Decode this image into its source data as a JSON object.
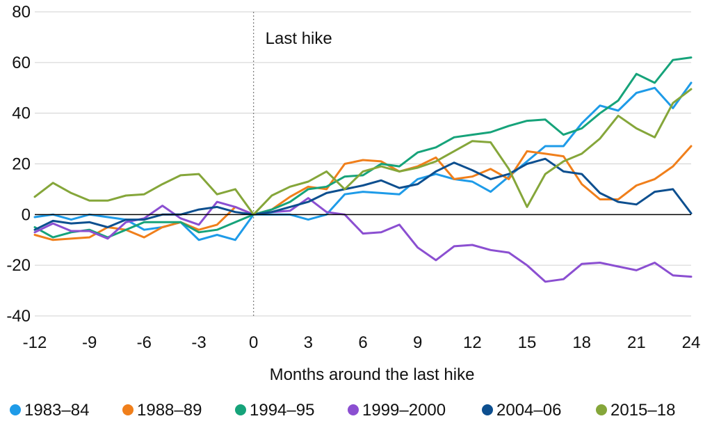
{
  "chart_data": {
    "type": "line",
    "xlabel": "Months around the last hike",
    "ylabel": "",
    "xlim": [
      -12,
      24
    ],
    "ylim": [
      -40,
      80
    ],
    "x_ticks": [
      -12,
      -9,
      -6,
      -3,
      0,
      3,
      6,
      9,
      12,
      15,
      18,
      21,
      24
    ],
    "y_ticks": [
      -40,
      -20,
      0,
      20,
      40,
      60,
      80
    ],
    "grid": true,
    "legend_position": "bottom",
    "annotation": {
      "text": "Last hike",
      "x": 0
    },
    "x": [
      -12,
      -11,
      -10,
      -9,
      -8,
      -7,
      -6,
      -5,
      -4,
      -3,
      -2,
      -1,
      0,
      1,
      2,
      3,
      4,
      5,
      6,
      7,
      8,
      9,
      10,
      11,
      12,
      13,
      14,
      15,
      16,
      17,
      18,
      19,
      20,
      21,
      22,
      23,
      24
    ],
    "series": [
      {
        "name": "1983–84",
        "color": "#1e9be8",
        "values": [
          -1,
          0,
          -2,
          0,
          -1,
          -2,
          -6,
          -5,
          -3,
          -10,
          -8,
          -10,
          0,
          0,
          0,
          -2,
          0,
          8,
          9,
          8.5,
          8,
          14,
          16,
          14,
          13,
          9,
          15,
          21,
          27,
          27,
          36,
          43,
          41,
          48,
          50,
          42,
          52
        ]
      },
      {
        "name": "1988–89",
        "color": "#f07f1b",
        "values": [
          -8,
          -10,
          -9.5,
          -9,
          -5,
          -6,
          -9,
          -5,
          -3,
          -6,
          -4,
          3,
          0,
          2,
          7,
          11,
          10,
          20,
          21.5,
          21,
          17,
          19,
          22.5,
          14,
          15,
          18,
          14,
          25,
          24,
          23,
          12,
          6,
          6,
          11.5,
          14,
          19,
          27
        ]
      },
      {
        "name": "1994–95",
        "color": "#16a37a",
        "values": [
          -5,
          -9,
          -7,
          -6,
          -9,
          -6,
          -3,
          -3,
          -3,
          -7,
          -6,
          -3,
          0,
          2,
          5,
          10,
          11,
          15,
          15.5,
          20,
          19,
          24.5,
          26.5,
          30.5,
          31.5,
          32.5,
          35,
          37,
          37.5,
          31.5,
          34,
          40,
          45,
          55.5,
          52,
          61,
          62
        ]
      },
      {
        "name": "1999–2000",
        "color": "#8b4fd1",
        "values": [
          -7,
          -3.5,
          -6.5,
          -6.5,
          -9.5,
          -3,
          -1.5,
          3.5,
          -1.5,
          -4,
          5,
          3,
          0,
          1,
          1.5,
          6.5,
          1,
          0,
          -7.5,
          -7,
          -4,
          -13,
          -18,
          -12.5,
          -12,
          -14,
          -15,
          -20,
          -26.5,
          -25.5,
          -19.5,
          -19,
          -20.5,
          -22,
          -19,
          -24,
          -24.5
        ]
      },
      {
        "name": "2004–06",
        "color": "#0d4f8f",
        "values": [
          -6,
          -2.5,
          -3.5,
          -3,
          -5,
          -2,
          -2,
          0,
          0,
          2,
          3,
          1,
          0,
          1,
          3,
          5,
          8.5,
          10,
          11.5,
          13.5,
          10.5,
          12,
          17,
          20.5,
          17.5,
          14,
          16,
          20,
          22,
          17,
          16,
          8.5,
          5,
          4,
          9,
          10,
          0.5
        ]
      },
      {
        "name": "2015–18",
        "color": "#85a63a",
        "values": [
          7,
          12.5,
          8.5,
          5.5,
          5.5,
          7.5,
          8,
          12,
          15.5,
          16,
          8,
          10,
          0,
          7.5,
          11,
          13,
          17,
          10,
          17,
          19,
          17,
          18.5,
          21,
          25,
          29,
          28.5,
          18,
          3,
          16,
          21,
          24,
          30,
          39,
          34,
          30.5,
          44,
          49.5
        ]
      }
    ]
  }
}
